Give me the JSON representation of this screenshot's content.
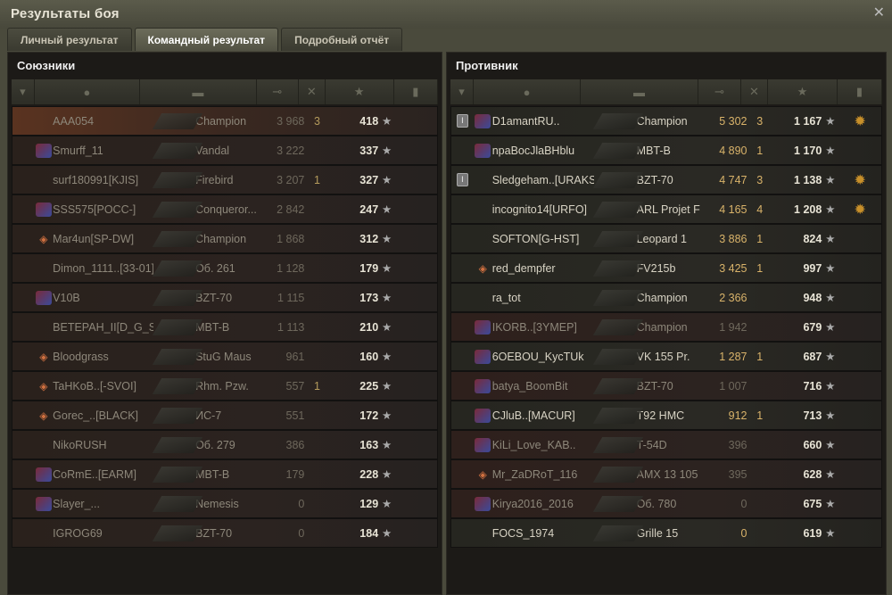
{
  "window": {
    "title": "Результаты боя",
    "close_icon": "close-icon"
  },
  "tabs": [
    {
      "label": "Личный результат",
      "active": false
    },
    {
      "label": "Командный результат",
      "active": true
    },
    {
      "label": "Подробный отчёт",
      "active": false
    }
  ],
  "columns": [
    "squad-icon",
    "player-icon",
    "tank-icon",
    "damage-icon",
    "kills-icon",
    "xp-star-icon",
    "medal-icon"
  ],
  "allies": {
    "title": "Союзники",
    "rows": [
      {
        "name": "AAA054",
        "tank": "Champion",
        "damage": "3 968",
        "kills": "3",
        "xp": "418",
        "emblem": "",
        "self": true
      },
      {
        "name": "Smurff_11",
        "tank": "Vandal",
        "damage": "3 222",
        "kills": "",
        "xp": "337",
        "emblem": "clan"
      },
      {
        "name": "surf180991[KJIS]",
        "tank": "Firebird",
        "damage": "3 207",
        "kills": "1",
        "xp": "327",
        "emblem": ""
      },
      {
        "name": "SSS575[POCC-]",
        "tank": "Conqueror...",
        "damage": "2 842",
        "kills": "",
        "xp": "247",
        "emblem": "clan"
      },
      {
        "name": "Mar4un[SP-DW]",
        "tank": "Champion",
        "damage": "1 868",
        "kills": "",
        "xp": "312",
        "emblem": "rank"
      },
      {
        "name": "Dimon_1111..[33-01]",
        "tank": "Об. 261",
        "damage": "1 128",
        "kills": "",
        "xp": "179",
        "emblem": ""
      },
      {
        "name": "V10B",
        "tank": "BZT-70",
        "damage": "1 115",
        "kills": "",
        "xp": "173",
        "emblem": "clan"
      },
      {
        "name": "ВЕТЕРАН_II[D_G_S]",
        "tank": "MBT-B",
        "damage": "1 113",
        "kills": "",
        "xp": "210",
        "emblem": ""
      },
      {
        "name": "Bloodgrass",
        "tank": "StuG Maus",
        "damage": "961",
        "kills": "",
        "xp": "160",
        "emblem": "rank"
      },
      {
        "name": "TaHKoB..[-SVOI]",
        "tank": "Rhm. Pzw.",
        "damage": "557",
        "kills": "1",
        "xp": "225",
        "emblem": "rank"
      },
      {
        "name": "Gorec_..[BLACK]",
        "tank": "ИС-7",
        "damage": "551",
        "kills": "",
        "xp": "172",
        "emblem": "rank"
      },
      {
        "name": "NikoRUSH",
        "tank": "Об. 279",
        "damage": "386",
        "kills": "",
        "xp": "163",
        "emblem": ""
      },
      {
        "name": "CoRmE..[EARM]",
        "tank": "MBT-B",
        "damage": "179",
        "kills": "",
        "xp": "228",
        "emblem": "clan"
      },
      {
        "name": "Slayer_...",
        "tank": "Nemesis",
        "damage": "0",
        "kills": "",
        "xp": "129",
        "emblem": "clan"
      },
      {
        "name": "IGROG69",
        "tank": "BZT-70",
        "damage": "0",
        "kills": "",
        "xp": "184",
        "emblem": ""
      }
    ]
  },
  "enemies": {
    "title": "Противник",
    "rows": [
      {
        "name": "D1amantRU..",
        "tank": "Champion",
        "damage": "5 302",
        "kills": "3",
        "xp": "1 167",
        "emblem": "clan",
        "platoon": "I",
        "medal": true,
        "alive": true
      },
      {
        "name": "npaBocJlaBHblu",
        "tank": "MBT-B",
        "damage": "4 890",
        "kills": "1",
        "xp": "1 170",
        "emblem": "clan",
        "alive": true
      },
      {
        "name": "Sledgeham..[URAKS]",
        "tank": "BZT-70",
        "damage": "4 747",
        "kills": "3",
        "xp": "1 138",
        "emblem": "",
        "platoon": "I",
        "medal": true,
        "alive": true
      },
      {
        "name": "incognito14[URFO]",
        "tank": "ARL Projet F",
        "damage": "4 165",
        "kills": "4",
        "xp": "1 208",
        "emblem": "",
        "medal": true,
        "alive": true
      },
      {
        "name": "SOFTON[G-HST]",
        "tank": "Leopard 1",
        "damage": "3 886",
        "kills": "1",
        "xp": "824",
        "emblem": "",
        "alive": true
      },
      {
        "name": "red_dempfer",
        "tank": "FV215b",
        "damage": "3 425",
        "kills": "1",
        "xp": "997",
        "emblem": "rank",
        "alive": true
      },
      {
        "name": "ra_tot",
        "tank": "Champion",
        "damage": "2 366",
        "kills": "",
        "xp": "948",
        "emblem": "",
        "alive": true
      },
      {
        "name": "IKORB..[3YMEP]",
        "tank": "Champion",
        "damage": "1 942",
        "kills": "",
        "xp": "679",
        "emblem": "clan",
        "alive": false
      },
      {
        "name": "6OEBOU_KycTUk",
        "tank": "VK 155 Pr.",
        "damage": "1 287",
        "kills": "1",
        "xp": "687",
        "emblem": "clan",
        "alive": true
      },
      {
        "name": "batya_BoomBit",
        "tank": "BZT-70",
        "damage": "1 007",
        "kills": "",
        "xp": "716",
        "emblem": "clan",
        "alive": false
      },
      {
        "name": "CJluB..[MACUR]",
        "tank": "T92 HMC",
        "damage": "912",
        "kills": "1",
        "xp": "713",
        "emblem": "clan",
        "alive": true
      },
      {
        "name": "KiLi_Love_KAB..",
        "tank": "T-54D",
        "damage": "396",
        "kills": "",
        "xp": "660",
        "emblem": "clan",
        "alive": false
      },
      {
        "name": "Mr_ZaDRoT_116",
        "tank": "AMX 13 105",
        "damage": "395",
        "kills": "",
        "xp": "628",
        "emblem": "rank",
        "alive": false
      },
      {
        "name": "Kirya2016_2016",
        "tank": "Об. 780",
        "damage": "0",
        "kills": "",
        "xp": "675",
        "emblem": "clan",
        "alive": false
      },
      {
        "name": "FOCS_1974",
        "tank": "Grille 15",
        "damage": "0",
        "kills": "",
        "xp": "619",
        "emblem": "",
        "alive": true
      }
    ]
  }
}
